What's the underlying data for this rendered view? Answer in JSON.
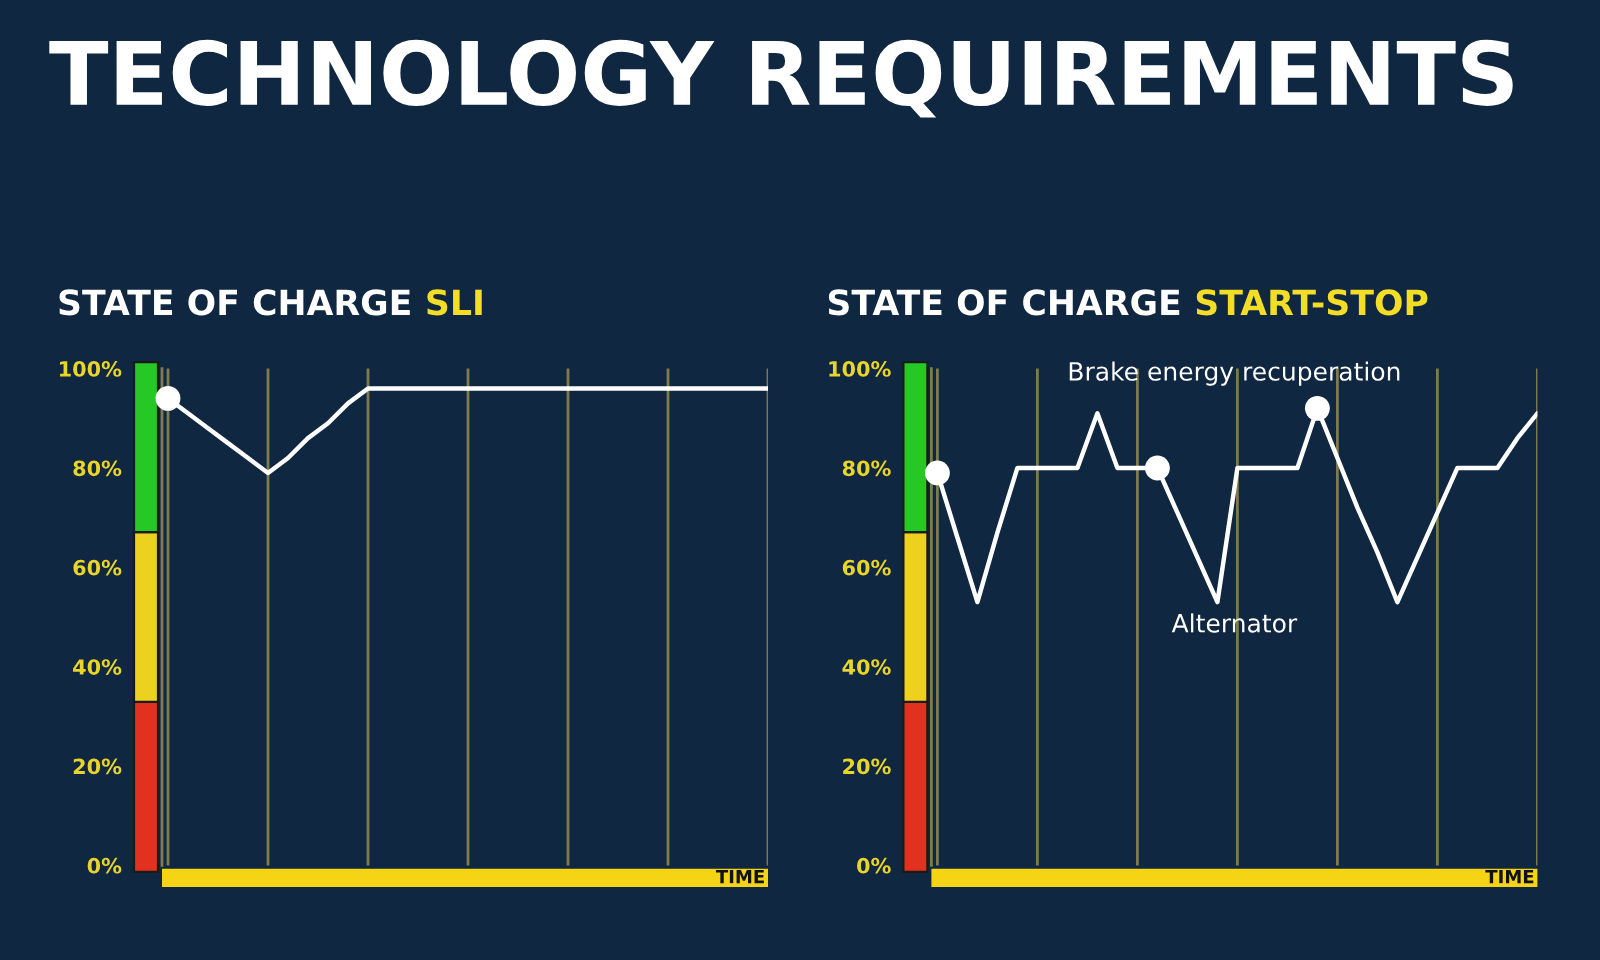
{
  "chart_data": [
    {
      "type": "line",
      "title": "STATE OF CHARGE",
      "subtitle": "SLI",
      "xlabel": "TIME",
      "categories": [
        null,
        null,
        null,
        null,
        null,
        null,
        null,
        null,
        null,
        null,
        null,
        null,
        null,
        null,
        null,
        null,
        null,
        null,
        null,
        null,
        null,
        null,
        null,
        null,
        null,
        null,
        null,
        null,
        null,
        null,
        null
      ],
      "ylim": [
        0,
        100
      ],
      "yticks": [
        {
          "value": 0,
          "label": "0%"
        },
        {
          "value": 20,
          "label": "20%"
        },
        {
          "value": 40,
          "label": "40%"
        },
        {
          "value": 60,
          "label": "60%"
        },
        {
          "value": 80,
          "label": "80%"
        },
        {
          "value": 100,
          "label": "100%"
        }
      ],
      "tick_labels": "y",
      "grid": "x",
      "series": [
        {
          "type": "line",
          "color": "#ffffff",
          "values": [
            94,
            91,
            88,
            85,
            82,
            79,
            82,
            86,
            89,
            93,
            96,
            96,
            96,
            96,
            96,
            96,
            96,
            96,
            96,
            96,
            96,
            96,
            96,
            96,
            96,
            96,
            96,
            96,
            96,
            96,
            96
          ]
        },
        {
          "type": "scatter",
          "marker": "circle",
          "color": "#ffffff",
          "values": [
            94,
            null,
            null,
            null,
            null,
            null,
            null,
            null,
            null,
            null,
            null,
            null,
            null,
            null,
            null,
            null,
            null,
            null,
            null,
            null,
            null,
            null,
            null,
            null,
            null,
            null,
            null,
            null,
            null,
            null,
            null
          ]
        }
      ],
      "annotations": [
        "TECHNOLOGY REQUIREMENTS"
      ]
    },
    {
      "type": "line",
      "title": "STATE OF CHARGE",
      "subtitle": "START-STOP",
      "xlabel": "TIME",
      "categories": [
        null,
        null,
        null,
        null,
        null,
        null,
        null,
        null,
        null,
        null,
        null,
        null,
        null,
        null,
        null,
        null,
        null,
        null,
        null,
        null,
        null,
        null,
        null,
        null,
        null,
        null,
        null,
        null,
        null,
        null,
        null
      ],
      "ylim": [
        0,
        100
      ],
      "yticks": [
        {
          "value": 0,
          "label": "0%"
        },
        {
          "value": 20,
          "label": "20%"
        },
        {
          "value": 40,
          "label": "40%"
        },
        {
          "value": 60,
          "label": "60%"
        },
        {
          "value": 80,
          "label": "80%"
        },
        {
          "value": 100,
          "label": "100%"
        }
      ],
      "tick_labels": "y",
      "grid": "x",
      "series": [
        {
          "type": "line",
          "color": "#ffffff",
          "values": [
            79,
            66,
            53,
            67,
            80,
            80,
            80,
            80,
            91,
            80,
            80,
            80,
            71,
            62,
            53,
            80,
            80,
            80,
            80,
            92,
            82,
            72,
            63,
            53,
            62,
            71,
            80,
            80,
            80,
            86,
            91
          ]
        },
        {
          "type": "scatter",
          "marker": "circle",
          "color": "#ffffff",
          "values": [
            79,
            null,
            null,
            null,
            null,
            null,
            null,
            null,
            null,
            null,
            null,
            80,
            null,
            null,
            null,
            null,
            null,
            null,
            null,
            92,
            null,
            null,
            null,
            null,
            null,
            null,
            null,
            null,
            null,
            null,
            null
          ]
        }
      ],
      "annotations": [
        "Brake energy recuperation",
        "Alternator"
      ]
    }
  ]
}
